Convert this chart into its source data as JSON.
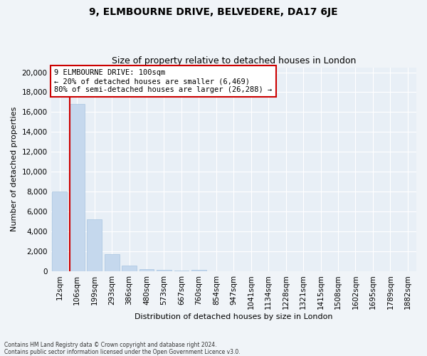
{
  "title": "9, ELMBOURNE DRIVE, BELVEDERE, DA17 6JE",
  "subtitle": "Size of property relative to detached houses in London",
  "xlabel": "Distribution of detached houses by size in London",
  "ylabel": "Number of detached properties",
  "categories": [
    "12sqm",
    "106sqm",
    "199sqm",
    "293sqm",
    "386sqm",
    "480sqm",
    "573sqm",
    "667sqm",
    "760sqm",
    "854sqm",
    "947sqm",
    "1041sqm",
    "1134sqm",
    "1228sqm",
    "1321sqm",
    "1415sqm",
    "1508sqm",
    "1602sqm",
    "1695sqm",
    "1789sqm",
    "1882sqm"
  ],
  "values": [
    8000,
    16800,
    5200,
    1700,
    550,
    200,
    120,
    80,
    150,
    0,
    0,
    0,
    0,
    0,
    0,
    0,
    0,
    0,
    0,
    0,
    0
  ],
  "bar_color": "#c5d8ed",
  "bar_edge_color": "#a8c4e0",
  "property_line_color": "#cc0000",
  "property_bar_index": 1,
  "annotation_title": "9 ELMBOURNE DRIVE: 100sqm",
  "annotation_line1": "← 20% of detached houses are smaller (6,469)",
  "annotation_line2": "80% of semi-detached houses are larger (26,288) →",
  "annotation_box_color": "#ffffff",
  "annotation_box_edge_color": "#cc0000",
  "ylim": [
    0,
    20500
  ],
  "yticks": [
    0,
    2000,
    4000,
    6000,
    8000,
    10000,
    12000,
    14000,
    16000,
    18000,
    20000
  ],
  "footer_line1": "Contains HM Land Registry data © Crown copyright and database right 2024.",
  "footer_line2": "Contains public sector information licensed under the Open Government Licence v3.0.",
  "background_color": "#f0f4f8",
  "plot_bg_color": "#e8eff6",
  "grid_color": "#ffffff",
  "title_fontsize": 10,
  "subtitle_fontsize": 9,
  "axis_label_fontsize": 8,
  "tick_fontsize": 7.5
}
